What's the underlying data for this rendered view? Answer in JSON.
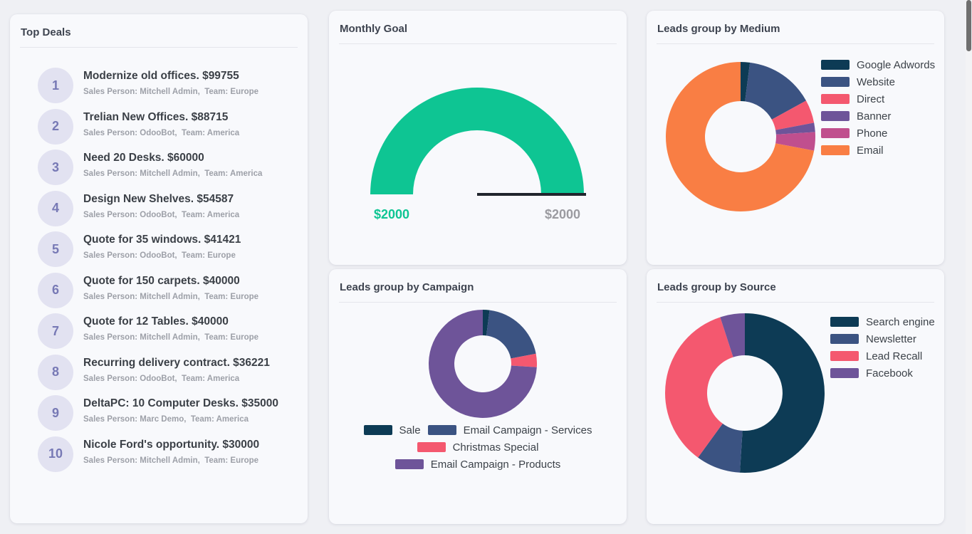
{
  "top_deals": {
    "title": "Top Deals",
    "items": [
      {
        "rank": "1",
        "title": "Modernize old offices. $99755",
        "subtitle": "Sales Person: Mitchell Admin,  Team: Europe"
      },
      {
        "rank": "2",
        "title": "Trelian New Offices. $88715",
        "subtitle": "Sales Person: OdooBot,  Team: America"
      },
      {
        "rank": "3",
        "title": "Need 20 Desks. $60000",
        "subtitle": "Sales Person: Mitchell Admin,  Team: America"
      },
      {
        "rank": "4",
        "title": "Design New Shelves. $54587",
        "subtitle": "Sales Person: OdooBot,  Team: America"
      },
      {
        "rank": "5",
        "title": "Quote for 35 windows. $41421",
        "subtitle": "Sales Person: OdooBot,  Team: Europe"
      },
      {
        "rank": "6",
        "title": "Quote for 150 carpets. $40000",
        "subtitle": "Sales Person: Mitchell Admin,  Team: Europe"
      },
      {
        "rank": "7",
        "title": "Quote for 12 Tables. $40000",
        "subtitle": "Sales Person: Mitchell Admin,  Team: Europe"
      },
      {
        "rank": "8",
        "title": "Recurring delivery contract. $36221",
        "subtitle": "Sales Person: OdooBot,  Team: America"
      },
      {
        "rank": "9",
        "title": "DeltaPC: 10 Computer Desks. $35000",
        "subtitle": "Sales Person: Marc Demo,  Team: America"
      },
      {
        "rank": "10",
        "title": "Nicole Ford's opportunity. $30000",
        "subtitle": "Sales Person: Mitchell Admin,  Team: Europe"
      }
    ]
  },
  "chart_data": [
    {
      "id": "monthly_goal",
      "type": "gauge",
      "title": "Monthly Goal",
      "value": 2000,
      "max": 2000,
      "value_label": "$2000",
      "max_label": "$2000",
      "color": "#0ec593",
      "baseline_color": "#21252d"
    },
    {
      "id": "leads_by_medium",
      "type": "pie",
      "title": "Leads group by Medium",
      "legend_position": "right",
      "slices": [
        {
          "label": "Google Adwords",
          "value": 2,
          "color": "#0d3b55"
        },
        {
          "label": "Website",
          "value": 15,
          "color": "#3b5382"
        },
        {
          "label": "Direct",
          "value": 5,
          "color": "#f4586f"
        },
        {
          "label": "Banner",
          "value": 2,
          "color": "#6e5499"
        },
        {
          "label": "Phone",
          "value": 4,
          "color": "#c04f8e"
        },
        {
          "label": "Email",
          "value": 72,
          "color": "#f97e44"
        }
      ]
    },
    {
      "id": "leads_by_campaign",
      "type": "pie",
      "title": "Leads group by Campaign",
      "legend_position": "bottom",
      "slices": [
        {
          "label": "Sale",
          "value": 2,
          "color": "#0d3b55"
        },
        {
          "label": "Email Campaign - Services",
          "value": 20,
          "color": "#3b5382"
        },
        {
          "label": "Christmas Special",
          "value": 4,
          "color": "#f4586f"
        },
        {
          "label": "Email Campaign - Products",
          "value": 74,
          "color": "#6e5499"
        }
      ]
    },
    {
      "id": "leads_by_source",
      "type": "pie",
      "title": "Leads group by Source",
      "legend_position": "right",
      "slices": [
        {
          "label": "Search engine",
          "value": 51,
          "color": "#0d3b55"
        },
        {
          "label": "Newsletter",
          "value": 9,
          "color": "#3b5382"
        },
        {
          "label": "Lead Recall",
          "value": 35,
          "color": "#f4586f"
        },
        {
          "label": "Facebook",
          "value": 5,
          "color": "#6e5499"
        }
      ]
    }
  ]
}
